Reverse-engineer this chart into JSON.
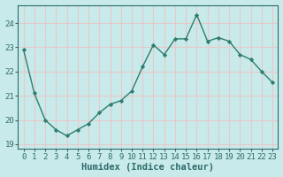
{
  "x": [
    0,
    1,
    2,
    3,
    4,
    5,
    6,
    7,
    8,
    9,
    10,
    11,
    12,
    13,
    14,
    15,
    16,
    17,
    18,
    19,
    20,
    21,
    22,
    23
  ],
  "y": [
    22.9,
    21.1,
    20.0,
    19.6,
    19.35,
    19.6,
    19.85,
    20.3,
    20.65,
    20.8,
    21.2,
    22.2,
    23.1,
    22.7,
    23.35,
    23.35,
    24.35,
    23.25,
    23.4,
    23.25,
    22.7,
    22.5,
    22.0,
    21.55
  ],
  "line_color": "#2e7d6e",
  "marker": "D",
  "marker_size": 2.2,
  "bg_color": "#c8eaea",
  "grid_color": "#e8c8c8",
  "xlabel": "Humidex (Indice chaleur)",
  "ylim": [
    18.8,
    24.75
  ],
  "xlim": [
    -0.5,
    23.5
  ],
  "yticks": [
    19,
    20,
    21,
    22,
    23,
    24
  ],
  "xticks": [
    0,
    1,
    2,
    3,
    4,
    5,
    6,
    7,
    8,
    9,
    10,
    11,
    12,
    13,
    14,
    15,
    16,
    17,
    18,
    19,
    20,
    21,
    22,
    23
  ],
  "tick_color": "#2e6b6b",
  "label_fontsize": 7.5,
  "tick_fontsize": 6.5,
  "line_width": 1.0
}
